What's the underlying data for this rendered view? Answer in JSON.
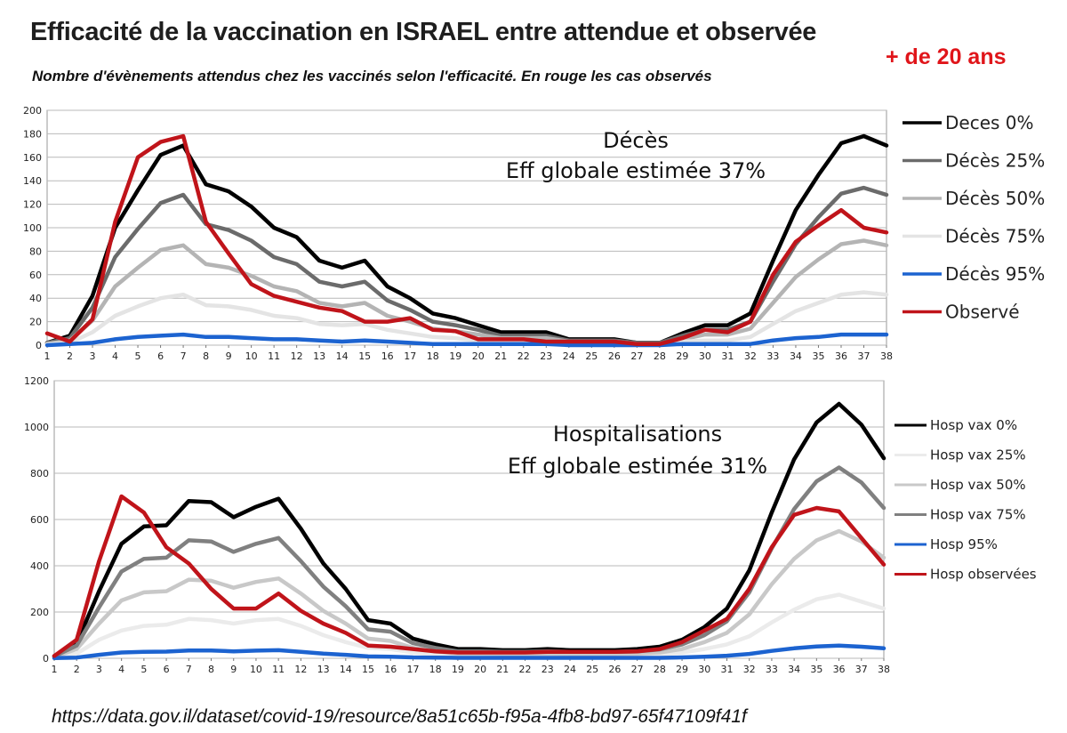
{
  "header": {
    "title": "Efficacité de la vaccination en ISRAEL entre attendue et observée",
    "subtitle": "Nombre d'évènements attendus chez les vaccinés selon l'efficacité. En rouge les cas observés",
    "age_label": "+ de 20 ans"
  },
  "footer": {
    "source_url": "https://data.gov.il/dataset/covid-19/resource/8a51c65b-f95a-4fb8-bd97-65f47109f41f"
  },
  "chart_data": [
    {
      "type": "line",
      "title": "Décès",
      "annotation_lines": [
        "Décès",
        "Eff globale estimée 37%"
      ],
      "x": [
        1,
        2,
        3,
        4,
        5,
        6,
        7,
        8,
        9,
        10,
        11,
        12,
        13,
        14,
        15,
        16,
        17,
        18,
        19,
        20,
        21,
        22,
        23,
        24,
        25,
        26,
        27,
        28,
        29,
        30,
        31,
        32,
        33,
        34,
        35,
        36,
        37,
        38
      ],
      "ylim": [
        0,
        200
      ],
      "yticks": [
        0,
        20,
        40,
        60,
        80,
        100,
        120,
        140,
        160,
        180,
        200
      ],
      "grid": true,
      "legend_position": "right",
      "series": [
        {
          "name": "Deces 0%",
          "color": "#000000",
          "values": [
            2,
            8,
            42,
            100,
            132,
            162,
            170,
            137,
            131,
            118,
            100,
            92,
            72,
            66,
            72,
            50,
            40,
            27,
            23,
            17,
            11,
            11,
            11,
            5,
            5,
            5,
            2,
            2,
            10,
            17,
            17,
            27,
            72,
            115,
            145,
            172,
            178,
            170
          ]
        },
        {
          "name": "Décès 25%",
          "color": "#6b6b6b",
          "values": [
            2,
            6,
            32,
            75,
            99,
            121,
            128,
            103,
            98,
            89,
            75,
            69,
            54,
            50,
            54,
            38,
            30,
            20,
            17,
            13,
            8,
            8,
            8,
            4,
            4,
            4,
            2,
            2,
            8,
            13,
            13,
            20,
            54,
            86,
            109,
            129,
            134,
            128
          ]
        },
        {
          "name": "Décès 50%",
          "color": "#b4b4b4",
          "values": [
            1,
            4,
            21,
            50,
            66,
            81,
            85,
            69,
            66,
            59,
            50,
            46,
            36,
            33,
            36,
            25,
            20,
            14,
            12,
            9,
            6,
            6,
            6,
            3,
            3,
            3,
            1,
            1,
            5,
            9,
            9,
            14,
            36,
            58,
            73,
            86,
            89,
            85
          ]
        },
        {
          "name": "Décès 75%",
          "color": "#e4e4e4",
          "values": [
            1,
            2,
            11,
            25,
            33,
            40,
            43,
            34,
            33,
            30,
            25,
            23,
            18,
            17,
            18,
            13,
            10,
            7,
            6,
            4,
            3,
            3,
            3,
            1,
            1,
            1,
            1,
            1,
            3,
            4,
            4,
            7,
            18,
            29,
            36,
            43,
            45,
            43
          ]
        },
        {
          "name": "Décès 95%",
          "color": "#1c63d0",
          "values": [
            0,
            1,
            2,
            5,
            7,
            8,
            9,
            7,
            7,
            6,
            5,
            5,
            4,
            3,
            4,
            3,
            2,
            1,
            1,
            1,
            1,
            1,
            1,
            0,
            0,
            0,
            0,
            0,
            1,
            1,
            1,
            1,
            4,
            6,
            7,
            9,
            9,
            9
          ]
        },
        {
          "name": "Observé",
          "color": "#c0141a",
          "values": [
            10,
            3,
            22,
            105,
            160,
            173,
            178,
            105,
            78,
            52,
            42,
            37,
            32,
            29,
            20,
            20,
            23,
            13,
            12,
            5,
            5,
            5,
            3,
            3,
            3,
            3,
            1,
            1,
            6,
            13,
            11,
            20,
            60,
            88,
            102,
            115,
            100,
            96
          ]
        }
      ]
    },
    {
      "type": "line",
      "title": "Hospitalisations",
      "annotation_lines": [
        "Hospitalisations",
        "Eff globale estimée 31%"
      ],
      "x": [
        1,
        2,
        3,
        4,
        5,
        6,
        7,
        8,
        9,
        10,
        11,
        12,
        13,
        14,
        15,
        16,
        17,
        18,
        19,
        20,
        21,
        22,
        23,
        24,
        25,
        26,
        27,
        28,
        29,
        30,
        31,
        32,
        33,
        34,
        35,
        36,
        37,
        38
      ],
      "ylim": [
        0,
        1200
      ],
      "yticks": [
        0,
        200,
        400,
        600,
        800,
        1000,
        1200
      ],
      "grid": true,
      "legend_position": "right",
      "series": [
        {
          "name": "Hosp vax 0%",
          "color": "#000000",
          "values": [
            10,
            65,
            290,
            495,
            570,
            575,
            680,
            675,
            610,
            655,
            690,
            560,
            410,
            300,
            165,
            150,
            85,
            60,
            40,
            40,
            35,
            35,
            40,
            35,
            35,
            35,
            40,
            50,
            80,
            135,
            215,
            380,
            630,
            860,
            1020,
            1100,
            1010,
            865
          ]
        },
        {
          "name": "Hosp vax 25%",
          "color": "#ebebeb",
          "values": [
            5,
            20,
            80,
            120,
            140,
            145,
            170,
            165,
            150,
            165,
            170,
            140,
            100,
            70,
            45,
            40,
            25,
            20,
            15,
            15,
            12,
            12,
            12,
            12,
            12,
            12,
            12,
            15,
            25,
            40,
            60,
            95,
            155,
            210,
            255,
            275,
            245,
            215
          ]
        },
        {
          "name": "Hosp vax 50%",
          "color": "#c8c8c8",
          "values": [
            6,
            40,
            150,
            250,
            285,
            290,
            340,
            335,
            305,
            330,
            345,
            280,
            205,
            150,
            85,
            75,
            45,
            30,
            20,
            20,
            18,
            18,
            20,
            18,
            18,
            18,
            20,
            25,
            40,
            70,
            110,
            190,
            320,
            430,
            510,
            550,
            505,
            435
          ]
        },
        {
          "name": "Hosp vax 75%",
          "color": "#808080",
          "values": [
            8,
            55,
            220,
            375,
            430,
            435,
            510,
            505,
            460,
            495,
            520,
            420,
            310,
            225,
            125,
            115,
            65,
            45,
            30,
            30,
            28,
            28,
            30,
            28,
            28,
            28,
            30,
            38,
            60,
            100,
            160,
            285,
            475,
            645,
            765,
            825,
            760,
            650
          ]
        },
        {
          "name": "Hosp 95%",
          "color": "#1c63d0",
          "values": [
            1,
            3,
            15,
            25,
            28,
            29,
            34,
            34,
            30,
            33,
            35,
            28,
            20,
            15,
            8,
            7,
            4,
            3,
            2,
            2,
            2,
            2,
            2,
            2,
            2,
            2,
            2,
            2,
            4,
            7,
            11,
            19,
            32,
            43,
            51,
            55,
            50,
            43
          ]
        },
        {
          "name": "Hosp observées",
          "color": "#c0141a",
          "values": [
            10,
            80,
            420,
            700,
            630,
            480,
            410,
            300,
            215,
            215,
            280,
            205,
            150,
            110,
            55,
            50,
            40,
            30,
            25,
            25,
            25,
            25,
            28,
            28,
            28,
            28,
            30,
            40,
            70,
            120,
            170,
            300,
            480,
            620,
            650,
            635,
            520,
            405
          ]
        }
      ]
    }
  ]
}
